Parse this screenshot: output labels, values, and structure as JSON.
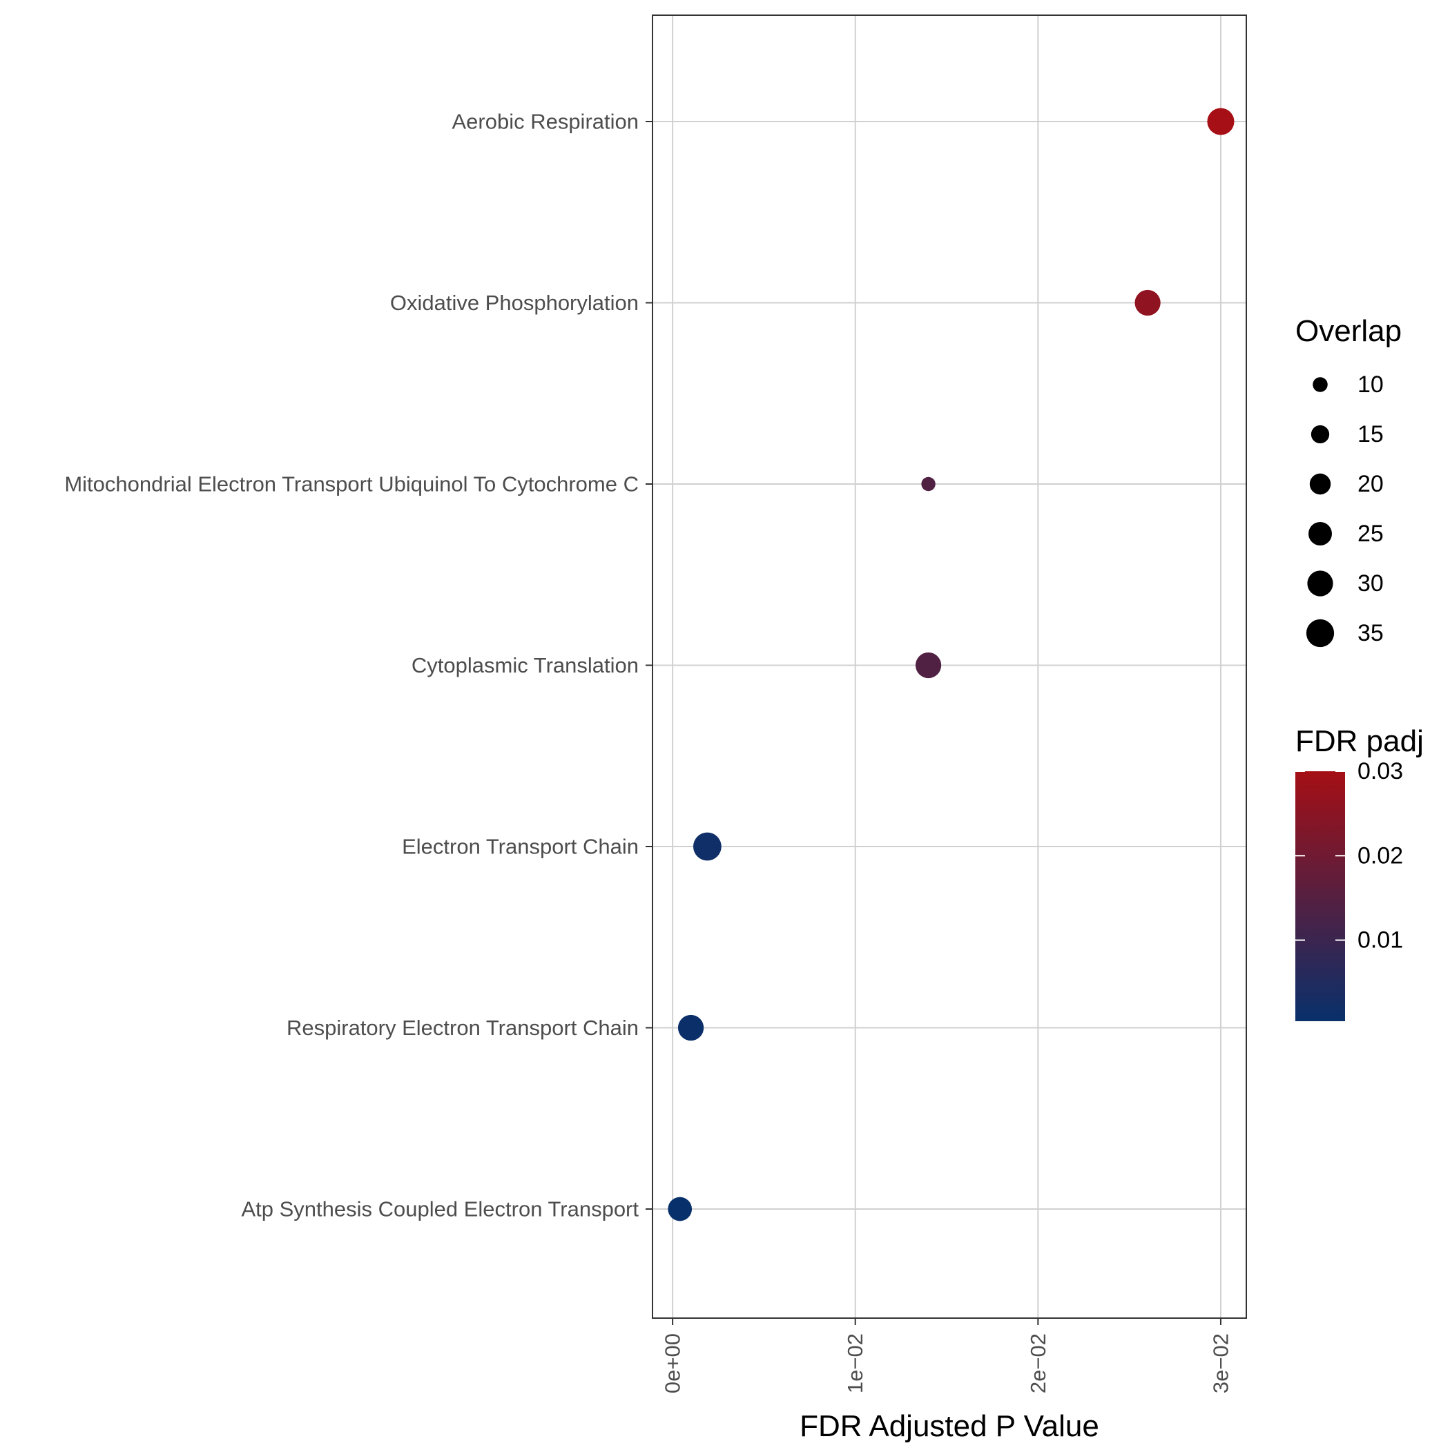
{
  "chart_data": {
    "type": "scatter",
    "xlabel": "FDR Adjusted P Value",
    "xlim": [
      -0.0011,
      0.0314
    ],
    "x_ticks": [
      0,
      0.01,
      0.02,
      0.03
    ],
    "x_tick_labels": [
      "0e+00",
      "1e−02",
      "2e−02",
      "3e−02"
    ],
    "grid": true,
    "categories": [
      "Atp Synthesis Coupled Electron Transport",
      "Respiratory Electron Transport Chain",
      "Electron Transport Chain",
      "Cytoplasmic Translation",
      "Mitochondrial Electron Transport Ubiquinol To Cytochrome C",
      "Oxidative Phosphorylation",
      "Aerobic Respiration"
    ],
    "points": [
      {
        "category": "Atp Synthesis Coupled Electron Transport",
        "x": 0.0004,
        "overlap": 26,
        "padj": 0.0004
      },
      {
        "category": "Respiratory Electron Transport Chain",
        "x": 0.001,
        "overlap": 30,
        "padj": 0.001
      },
      {
        "category": "Electron Transport Chain",
        "x": 0.0019,
        "overlap": 36,
        "padj": 0.0019
      },
      {
        "category": "Cytoplasmic Translation",
        "x": 0.014,
        "overlap": 30,
        "padj": 0.014
      },
      {
        "category": "Mitochondrial Electron Transport Ubiquinol To Cytochrome C",
        "x": 0.014,
        "overlap": 9,
        "padj": 0.014
      },
      {
        "category": "Oxidative Phosphorylation",
        "x": 0.026,
        "overlap": 30,
        "padj": 0.026
      },
      {
        "category": "Aerobic Respiration",
        "x": 0.03,
        "overlap": 33,
        "padj": 0.03
      }
    ],
    "legend_size": {
      "title": "Overlap",
      "values": [
        10,
        15,
        20,
        25,
        30,
        35
      ],
      "labels": [
        "10",
        "15",
        "20",
        "25",
        "30",
        "35"
      ]
    },
    "legend_color": {
      "title": "FDR padj",
      "range": [
        0.0004,
        0.03
      ],
      "ticks": [
        0.01,
        0.02,
        0.03
      ],
      "labels": [
        "0.01",
        "0.02",
        "0.03"
      ],
      "color_low": "#08306B",
      "color_high": "#A50F15"
    },
    "legend_placement": "right"
  }
}
